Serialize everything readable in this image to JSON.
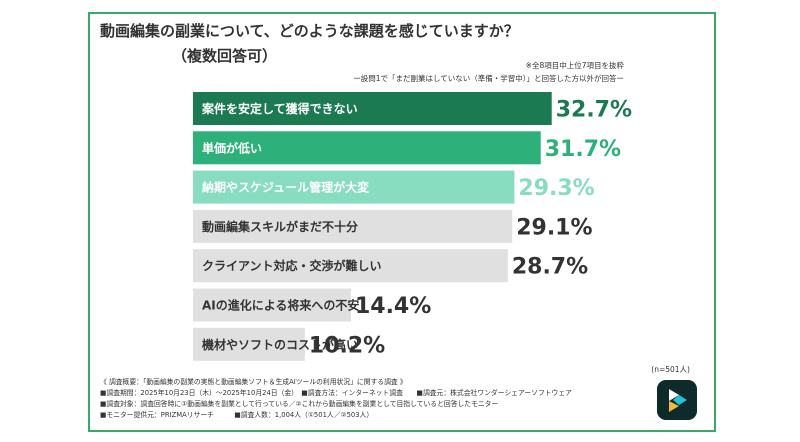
{
  "header": {
    "title": "動画編集の副業について、どのような課題を感じていますか？",
    "subtitle": "（複数回答可）",
    "note_selection": "※全8項目中上位7項目を抜粋",
    "note_filter": "ー設問1で「まだ副業はしていない（準備・学習中）」と回答した方以外が回答ー"
  },
  "colors": {
    "frame": "#3aa86b",
    "bar_rank1": "#1b7a52",
    "bar_rank2": "#2eb07a",
    "bar_rank3": "#88ddc0",
    "bar_other": "#e0e0e0",
    "label_dark": "#333333",
    "label_light": "#ffffff"
  },
  "chart_data": {
    "type": "bar",
    "orientation": "horizontal",
    "categories": [
      "案件を安定して獲得できない",
      "単価が低い",
      "納期やスケジュール管理が大変",
      "動画編集スキルがまだ不十分",
      "クライアント対応・交渉が難しい",
      "AIの進化による将来への不安",
      "機材やソフトのコストが高い"
    ],
    "values": [
      32.7,
      31.7,
      29.3,
      29.1,
      28.7,
      14.4,
      10.2
    ],
    "value_labels": [
      "32.7%",
      "31.7%",
      "29.3%",
      "29.1%",
      "28.7%",
      "14.4%",
      "10.2%"
    ],
    "value_colors": [
      "#1b7a52",
      "#2eb07a",
      "#88ddc0",
      "#333333",
      "#333333",
      "#333333",
      "#333333"
    ],
    "bar_colors": [
      "#1b7a52",
      "#2eb07a",
      "#88ddc0",
      "#e0e0e0",
      "#e0e0e0",
      "#e0e0e0",
      "#e0e0e0"
    ],
    "label_colors": [
      "#ffffff",
      "#ffffff",
      "#ffffff",
      "#333333",
      "#333333",
      "#333333",
      "#333333"
    ],
    "xlim": [
      0,
      33
    ],
    "grid": false,
    "legend": "none"
  },
  "sample": {
    "n_label": "(n=501人)"
  },
  "footer": {
    "lines": [
      "《 調査概要：「動画編集の副業の実態と動画編集ソフト＆生成AIツールの利用状況」に関する調査 》",
      "■調査期間：2025年10月23日（木）～2025年10月24日（金）　■調査方法：インターネット調査　　■調査元：株式会社ワンダーシェアーソフトウェア",
      "■調査対象：調査回答時に①動画編集を副業として行っている／②これから動画編集を副業として目指していると回答したモニター",
      "■モニター提供元：PRIZMAリサーチ　　　■調査人数：1,004人（①501人／②503人）"
    ]
  },
  "logo": {
    "icon": "filmora-logo-icon"
  }
}
